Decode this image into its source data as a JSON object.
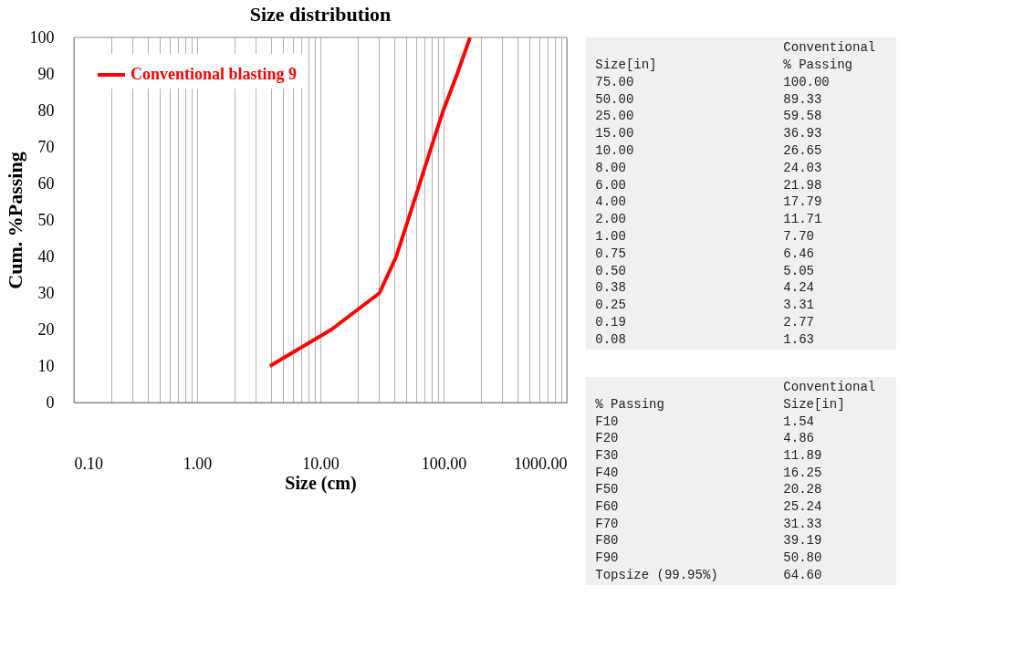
{
  "chart_data": [
    {
      "type": "line",
      "title": "Size distribution",
      "xlabel": "Size (cm)",
      "ylabel": "Cum. %Passing",
      "log": "x",
      "grid": "x",
      "legend": "top left",
      "marker": "none",
      "line_style": "solid",
      "xlim": [
        0.1,
        1000
      ],
      "ylim": [
        0,
        100
      ],
      "xticks": [
        {
          "value": 0.1,
          "label": "0.10"
        },
        {
          "value": 0.2,
          "label": null
        },
        {
          "value": 0.3,
          "label": null
        },
        {
          "value": 0.4,
          "label": null
        },
        {
          "value": 0.5,
          "label": null
        },
        {
          "value": 0.6,
          "label": null
        },
        {
          "value": 0.7,
          "label": null
        },
        {
          "value": 0.8,
          "label": null
        },
        {
          "value": 0.9,
          "label": null
        },
        {
          "value": 1,
          "label": "1.00"
        },
        {
          "value": 2,
          "label": null
        },
        {
          "value": 3,
          "label": null
        },
        {
          "value": 4,
          "label": null
        },
        {
          "value": 5,
          "label": null
        },
        {
          "value": 6,
          "label": null
        },
        {
          "value": 7,
          "label": null
        },
        {
          "value": 8,
          "label": null
        },
        {
          "value": 9,
          "label": null
        },
        {
          "value": 10,
          "label": "10.00"
        },
        {
          "value": 20,
          "label": null
        },
        {
          "value": 30,
          "label": null
        },
        {
          "value": 40,
          "label": null
        },
        {
          "value": 50,
          "label": null
        },
        {
          "value": 60,
          "label": null
        },
        {
          "value": 70,
          "label": null
        },
        {
          "value": 80,
          "label": null
        },
        {
          "value": 90,
          "label": null
        },
        {
          "value": 100,
          "label": "100.00"
        },
        {
          "value": 200,
          "label": null
        },
        {
          "value": 300,
          "label": null
        },
        {
          "value": 400,
          "label": null
        },
        {
          "value": 500,
          "label": null
        },
        {
          "value": 600,
          "label": null
        },
        {
          "value": 700,
          "label": null
        },
        {
          "value": 800,
          "label": null
        },
        {
          "value": 900,
          "label": null
        },
        {
          "value": 1000,
          "label": "1000.00"
        }
      ],
      "yticks": [
        0,
        10,
        20,
        30,
        40,
        50,
        60,
        70,
        80,
        90,
        100
      ],
      "series": [
        {
          "name": "Conventional blasting 9",
          "color": "#ff0000",
          "x": [
            3.9,
            12.3,
            30.2,
            41.3,
            51.5,
            64.1,
            79.6,
            99.5,
            129,
            164
          ],
          "values": [
            10,
            20,
            30,
            40,
            50,
            60,
            70,
            80,
            90,
            100
          ]
        }
      ]
    },
    {
      "type": "other",
      "annotations": [
        "\tConventional",
        "Size[in]\t% Passing",
        "75.00\t100.00",
        "50.00\t89.33",
        "25.00\t59.58",
        "15.00\t36.93",
        "10.00\t26.65",
        "8.00\t24.03",
        "6.00\t21.98",
        "4.00\t17.79",
        "2.00\t11.71",
        "1.00\t7.70",
        "0.75\t6.46",
        "0.50\t5.05",
        "0.38\t4.24",
        "0.25\t3.31",
        "0.19\t2.77",
        "0.08\t1.63"
      ]
    },
    {
      "type": "other",
      "annotations": [
        "\tConventional",
        "% Passing\tSize[in]",
        "F10\t1.54",
        "F20\t4.86",
        "F30\t11.89",
        "F40\t16.25",
        "F50\t20.28",
        "F60\t25.24",
        "F70\t31.33",
        "F80\t39.19",
        "F90\t50.80",
        "Topsize (99.95%)\t64.60"
      ]
    }
  ]
}
